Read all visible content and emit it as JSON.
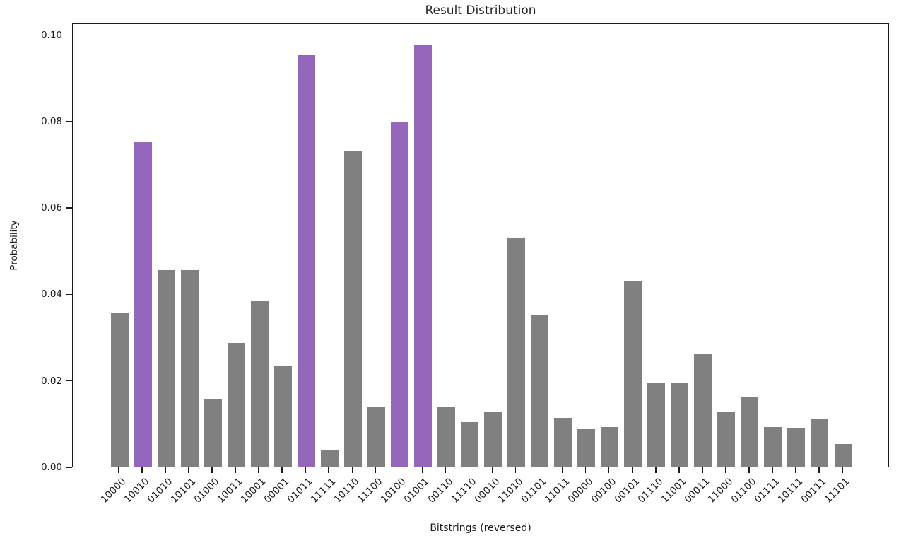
{
  "chart_data": {
    "type": "bar",
    "title": "Result Distribution",
    "xlabel": "Bitstrings (reversed)",
    "ylabel": "Probability",
    "categories": [
      "10000",
      "10010",
      "01010",
      "10101",
      "01000",
      "10011",
      "10001",
      "00001",
      "01011",
      "11111",
      "10110",
      "11100",
      "10100",
      "01001",
      "00110",
      "11110",
      "00010",
      "11010",
      "01101",
      "11011",
      "00000",
      "00100",
      "00101",
      "01110",
      "11001",
      "00011",
      "11000",
      "01100",
      "01111",
      "10111",
      "00111",
      "11101"
    ],
    "values": [
      0.0357,
      0.0752,
      0.0456,
      0.0456,
      0.0158,
      0.0287,
      0.0384,
      0.0234,
      0.0952,
      0.004,
      0.0731,
      0.0138,
      0.0798,
      0.0975,
      0.0139,
      0.0103,
      0.0127,
      0.0531,
      0.0353,
      0.0113,
      0.0087,
      0.0093,
      0.043,
      0.0193,
      0.0196,
      0.0262,
      0.0126,
      0.0162,
      0.0093,
      0.0089,
      0.0112,
      0.0053
    ],
    "highlighted_indices": [
      1,
      8,
      12,
      13
    ],
    "bar_color": "#808080",
    "highlight_color": "#9467bd",
    "axis_color": "#1a1a1a",
    "background_color": "#ffffff",
    "ylim": [
      0,
      0.1027
    ],
    "yticks": [
      0.0,
      0.02,
      0.04,
      0.06,
      0.08,
      0.1
    ],
    "ytick_labels": [
      "0.00",
      "0.02",
      "0.04",
      "0.06",
      "0.08",
      "0.10"
    ],
    "xtick_rotation_deg": 45,
    "grid": false,
    "legend": null
  }
}
